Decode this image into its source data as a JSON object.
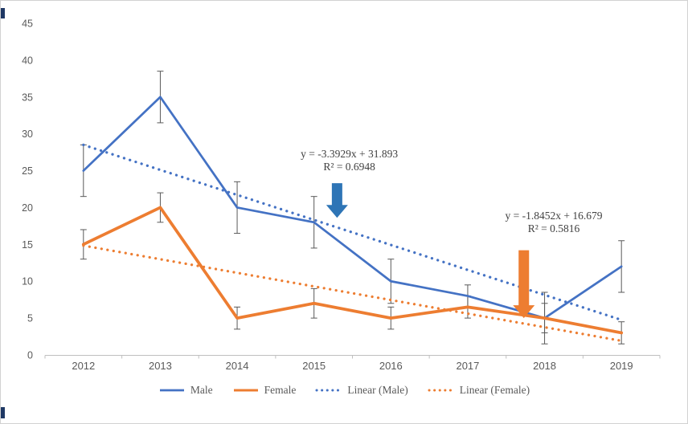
{
  "page": {
    "background": "#ffffff",
    "border_color": "#d2d2d2",
    "text_color": "#595959"
  },
  "chart_data": {
    "type": "line",
    "title": "",
    "xlabel": "",
    "ylabel": "",
    "categories": [
      "2012",
      "2013",
      "2014",
      "2015",
      "2016",
      "2017",
      "2018",
      "2019"
    ],
    "series": [
      {
        "name": "Male",
        "color": "#4472C4",
        "style": "solid",
        "width": 2.75,
        "values": [
          25,
          35,
          20,
          18,
          10,
          8,
          5,
          12
        ],
        "errors": [
          3.5,
          3.5,
          3.5,
          3.5,
          3,
          1.5,
          3.5,
          3.5
        ]
      },
      {
        "name": "Female",
        "color": "#ED7D31",
        "style": "solid",
        "width": 3.75,
        "values": [
          15,
          20,
          5,
          7,
          5,
          6.5,
          5,
          3
        ],
        "errors": [
          2,
          2,
          1.5,
          2,
          1.5,
          1.5,
          2,
          1.5
        ]
      },
      {
        "name": "Linear (Male)",
        "color": "#4472C4",
        "style": "dotted",
        "width": 3.25,
        "trend": {
          "slope": -3.3929,
          "intercept": 31.893
        }
      },
      {
        "name": "Linear (Female)",
        "color": "#ED7D31",
        "style": "dotted",
        "width": 3.25,
        "trend": {
          "slope": -1.8452,
          "intercept": 16.679
        }
      }
    ],
    "ylim": [
      0,
      45
    ],
    "ytick_step": 5,
    "grid": false,
    "legend_position": "bottom",
    "error_bar_color": "#595959",
    "axis_color": "#bfbfbf",
    "annotation_text_color": "#404040",
    "annotations": [
      {
        "lines": [
          "y = -3.3929x + 31.893",
          "R² = 0.6948"
        ],
        "x_index": 3.46,
        "y_value": 26.8,
        "arrow": {
          "x_index": 3.3,
          "top_value": 23.3,
          "tip_value": 18.6,
          "color": "#2E75B6"
        }
      },
      {
        "lines": [
          "y = -1.8452x + 16.679",
          "R² = 0.5816"
        ],
        "x_index": 6.12,
        "y_value": 18.4,
        "arrow": {
          "x_index": 5.73,
          "top_value": 14.2,
          "tip_value": 5.0,
          "color": "#ED7D31"
        }
      }
    ]
  }
}
